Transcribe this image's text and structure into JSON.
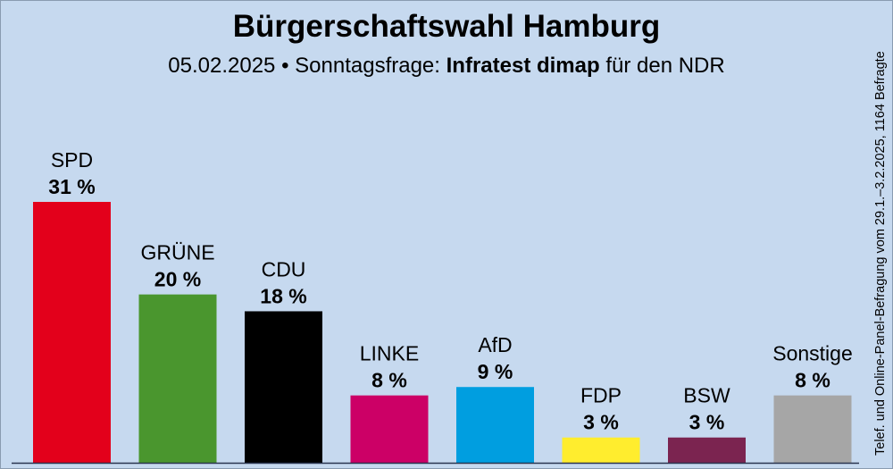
{
  "chart_data": {
    "type": "bar",
    "title": "Bürgerschaftswahl Hamburg",
    "subtitle": {
      "date": "05.02.2025",
      "separator": "•",
      "prefix": "Sonntagsfrage:",
      "institute": "Infratest dimap",
      "suffix": "für den NDR"
    },
    "note": "Telef. und Online-Panel-Befragung vom 29.1.–3.2.2025, 1164 Befragte",
    "categories": [
      "SPD",
      "GRÜNE",
      "CDU",
      "LINKE",
      "AfD",
      "FDP",
      "BSW",
      "Sonstige"
    ],
    "values": [
      31,
      20,
      18,
      8,
      9,
      3,
      3,
      8
    ],
    "value_labels": [
      "31 %",
      "20 %",
      "18 %",
      "8 %",
      "9 %",
      "3 %",
      "3 %",
      "8 %"
    ],
    "colors": [
      "#e3001b",
      "#4a962e",
      "#000000",
      "#cc0066",
      "#009ee0",
      "#ffed2e",
      "#7b2450",
      "#a6a6a6"
    ],
    "background": "#c6d9ef",
    "ylim": [
      0,
      31
    ],
    "grid": false
  }
}
